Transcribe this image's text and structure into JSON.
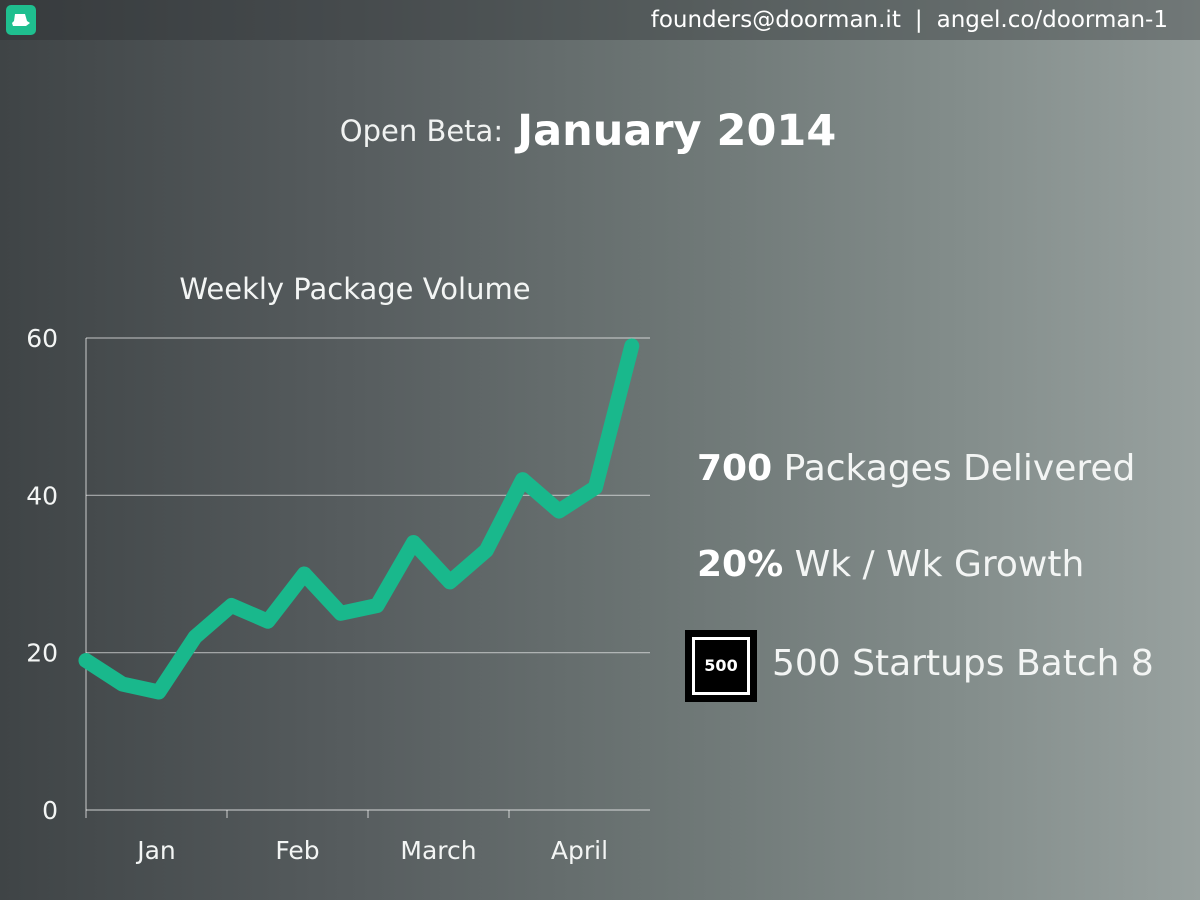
{
  "header": {
    "email": "founders@doorman.it",
    "separator": "|",
    "angel": "angel.co/doorman-1",
    "logo_icon": "doorman-hat-icon",
    "brand_color": "#1fbf8f"
  },
  "headline": {
    "label": "Open Beta:",
    "date": "January 2014"
  },
  "stats": [
    {
      "bold": "700",
      "rest": " Packages Delivered"
    },
    {
      "bold": "20%",
      "rest": " Wk / Wk Growth"
    }
  ],
  "accelerator": {
    "badge_text": "500",
    "label": "500 Startups Batch 8"
  },
  "chart_data": {
    "type": "line",
    "title": "Weekly Package Volume",
    "xlabel": "",
    "ylabel": "",
    "ylim": [
      0,
      60
    ],
    "yticks": [
      0,
      20,
      40,
      60
    ],
    "x_labels": [
      "Jan",
      "Feb",
      "March",
      "April"
    ],
    "grid": true,
    "line_color": "#19b88c",
    "series": [
      {
        "values": [
          19,
          16,
          15,
          22,
          26,
          24,
          30,
          25,
          26,
          34,
          29,
          33,
          42,
          38,
          41,
          59
        ]
      }
    ]
  }
}
